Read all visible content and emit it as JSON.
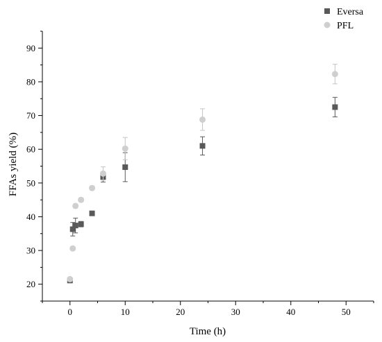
{
  "chart_data": {
    "type": "scatter",
    "xlabel": "Time (h)",
    "ylabel": "FFAs yield (%)",
    "xlim": [
      -5,
      55
    ],
    "ylim": [
      15,
      95
    ],
    "xticks": [
      0,
      10,
      20,
      30,
      40,
      50
    ],
    "yticks": [
      20,
      30,
      40,
      50,
      60,
      70,
      80,
      90
    ],
    "grid": false,
    "legend_position": "top-right",
    "series": [
      {
        "name": "Eversa",
        "marker": "square",
        "color": "#595959",
        "points": [
          {
            "x": 0,
            "y": 21.1,
            "err": 0.4
          },
          {
            "x": 0.5,
            "y": 36.3,
            "err": 2.0
          },
          {
            "x": 1,
            "y": 37.4,
            "err": 2.2
          },
          {
            "x": 2,
            "y": 37.8,
            "err": 0.8
          },
          {
            "x": 4,
            "y": 41.0,
            "err": 0.5
          },
          {
            "x": 6,
            "y": 51.8,
            "err": 1.5
          },
          {
            "x": 10,
            "y": 54.7,
            "err": 4.3
          },
          {
            "x": 24,
            "y": 61.0,
            "err": 2.7
          },
          {
            "x": 48,
            "y": 72.5,
            "err": 2.9
          }
        ]
      },
      {
        "name": "PFL",
        "marker": "circle",
        "color": "#cfcfcf",
        "points": [
          {
            "x": 0,
            "y": 21.5,
            "err": 0.4
          },
          {
            "x": 0.5,
            "y": 30.6,
            "err": 0.5
          },
          {
            "x": 1,
            "y": 43.2,
            "err": 0.6
          },
          {
            "x": 2,
            "y": 45.0,
            "err": 0.6
          },
          {
            "x": 4,
            "y": 48.5,
            "err": 0.6
          },
          {
            "x": 6,
            "y": 52.8,
            "err": 2.0
          },
          {
            "x": 10,
            "y": 60.2,
            "err": 3.3
          },
          {
            "x": 24,
            "y": 68.8,
            "err": 3.2
          },
          {
            "x": 48,
            "y": 82.3,
            "err": 2.9
          }
        ]
      }
    ]
  }
}
